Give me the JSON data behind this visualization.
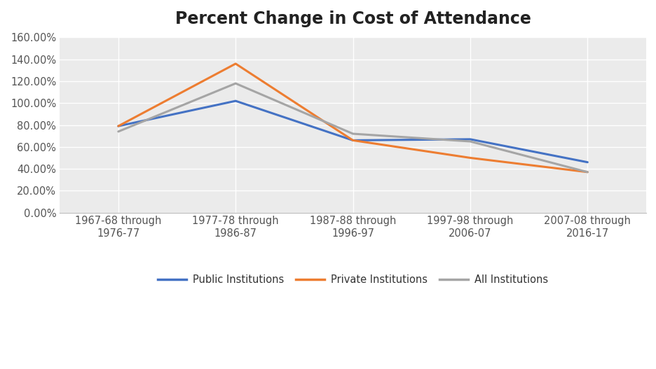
{
  "title": "Percent Change in Cost of Attendance",
  "categories": [
    "1967-68 through\n1976-77",
    "1977-78 through\n1986-87",
    "1987-88 through\n1996-97",
    "1997-98 through\n2006-07",
    "2007-08 through\n2016-17"
  ],
  "series": {
    "Public Institutions": {
      "values": [
        0.79,
        1.02,
        0.66,
        0.67,
        0.46
      ],
      "color": "#4472C4",
      "linewidth": 2.2
    },
    "Private Institutions": {
      "values": [
        0.79,
        1.36,
        0.66,
        0.5,
        0.37
      ],
      "color": "#ED7D31",
      "linewidth": 2.2
    },
    "All Institutions": {
      "values": [
        0.74,
        1.18,
        0.72,
        0.65,
        0.37
      ],
      "color": "#A5A5A5",
      "linewidth": 2.2
    }
  },
  "ylim": [
    0.0,
    1.6
  ],
  "ytick_interval": 0.2,
  "fig_bg_color": "#FFFFFF",
  "plot_bg_color": "#EBEBEB",
  "title_fontsize": 17,
  "tick_fontsize": 10.5,
  "legend_fontsize": 10.5,
  "grid_color": "#FFFFFF",
  "grid_linewidth": 1.0,
  "spine_color": "#BBBBBB"
}
